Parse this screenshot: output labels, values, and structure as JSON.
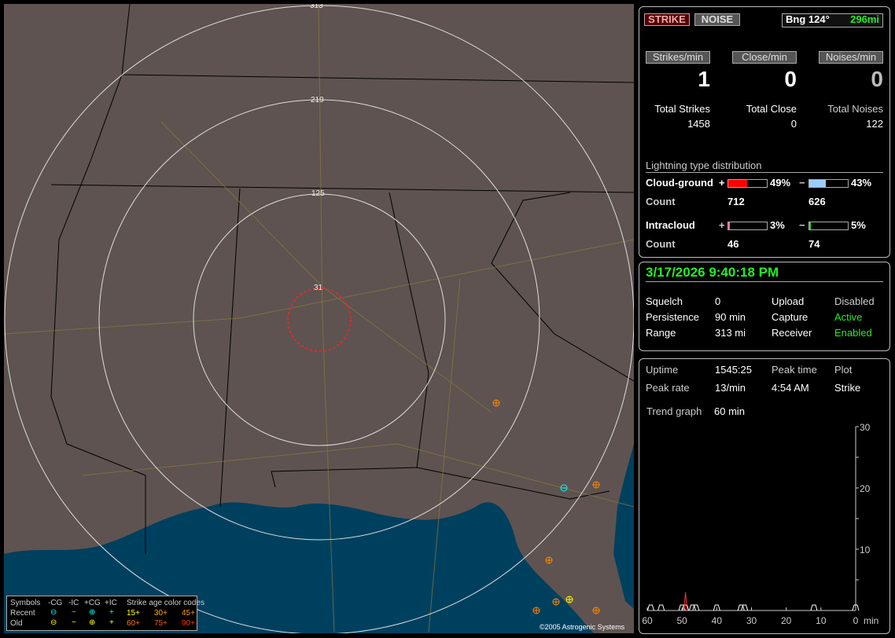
{
  "map": {
    "range_labels": [
      "313",
      "219",
      "125",
      "31"
    ],
    "copyright": "©2005 Astrogenic Systems",
    "colors": {
      "land": "#5e5350",
      "water": "#00405f",
      "rings": "#dddddd",
      "close_ring": "#ff2020"
    },
    "strikes": [
      {
        "symbol": "+CG",
        "age_color": "#ff8800"
      },
      {
        "symbol": "+CG",
        "age_color": "#ff8800"
      },
      {
        "symbol": "+CG",
        "age_color": "#ff8800"
      },
      {
        "symbol": "+CG",
        "age_color": "#ff8800"
      },
      {
        "symbol": "+CG",
        "age_color": "#ffff00"
      },
      {
        "symbol": "+CG",
        "age_color": "#ff8800"
      },
      {
        "symbol": "+CG",
        "age_color": "#ff8800"
      },
      {
        "symbol": "-CG",
        "age_color": "#00ffff"
      }
    ],
    "legend": {
      "header": [
        "Symbols",
        "-CG",
        "-IC",
        "+CG",
        "+IC",
        "Strike age color codes"
      ],
      "recent": {
        "label": "Recent",
        "symbols": [
          "⊖",
          "−",
          "⊕",
          "+"
        ],
        "ages": [
          "15+",
          "30+",
          "45+"
        ]
      },
      "old": {
        "label": "Old",
        "symbols": [
          "⊖",
          "−",
          "⊕",
          "+"
        ],
        "ages": [
          "60+",
          "75+",
          "90+"
        ]
      },
      "age_colors": [
        "#ffff00",
        "#ffaa00",
        "#ff9900",
        "#ff7700",
        "#ff5500",
        "#ff3300"
      ]
    }
  },
  "top": {
    "strike_btn": "STRIKE",
    "noise_btn": "NOISE",
    "bearing": "Bng 124°",
    "distance": "296mi",
    "rates": [
      {
        "label": "Strikes/min",
        "value": "1"
      },
      {
        "label": "Close/min",
        "value": "0"
      },
      {
        "label": "Noises/min",
        "value": "0"
      }
    ],
    "totals": [
      {
        "label": "Total Strikes",
        "value": "1458"
      },
      {
        "label": "Total Close",
        "value": "0"
      },
      {
        "label": "Total Noises",
        "value": "122"
      }
    ],
    "dist_title": "Lightning type distribution",
    "cg": {
      "label": "Cloud-ground",
      "pos_pct": "49%",
      "neg_pct": "43%",
      "pos_frac": 0.49,
      "neg_frac": 0.43,
      "count_label": "Count",
      "pos_count": "712",
      "neg_count": "626"
    },
    "ic": {
      "label": "Intracloud",
      "pos_pct": "3%",
      "neg_pct": "5%",
      "pos_frac": 0.03,
      "neg_frac": 0.05,
      "count_label": "Count",
      "pos_count": "46",
      "neg_count": "74"
    },
    "plus": "+",
    "minus": "−"
  },
  "status": {
    "datetime": "3/17/2026 9:40:18 PM",
    "rows": [
      [
        "Squelch",
        "0",
        "Upload",
        "Disabled"
      ],
      [
        "Persistence",
        "90 min",
        "Capture",
        "Active"
      ],
      [
        "Range",
        "313 mi",
        "Receiver",
        "Enabled"
      ]
    ]
  },
  "stats": {
    "uptime_label": "Uptime",
    "uptime": "1545:25",
    "peak_time_label": "Peak time",
    "plot_label": "Plot",
    "peak_rate_label": "Peak rate",
    "peak_rate": "13/min",
    "peak_time": "4:54 AM",
    "plot": "Strike",
    "trend_label": "Trend graph",
    "trend": "60 min"
  },
  "chart_data": {
    "type": "bar",
    "x_ticks": [
      "60",
      "50",
      "40",
      "30",
      "20",
      "10",
      "0"
    ],
    "x_unit": "min",
    "y_ticks": [
      "10",
      "20",
      "30"
    ],
    "ylim": [
      0,
      30
    ],
    "xlim": [
      60,
      0
    ],
    "x": [
      59,
      56,
      50,
      49,
      47,
      46,
      40,
      33,
      32,
      12,
      0
    ],
    "values": [
      1,
      1,
      1,
      3,
      1,
      1,
      1,
      1,
      1,
      1,
      1
    ]
  }
}
